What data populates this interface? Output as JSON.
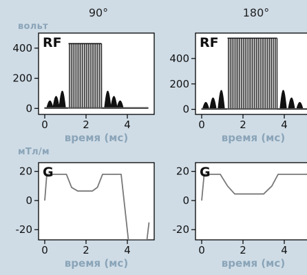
{
  "header": {
    "columns": [
      "90°",
      "180°"
    ],
    "rf_unit": "вольт",
    "g_unit": "мТл/м"
  },
  "chart_data": [
    {
      "id": "rf-90",
      "type": "line",
      "panel_label": "RF",
      "column": "90°",
      "xlabel": "время (мс)",
      "ylabel": "вольт",
      "xlim": [
        -0.3,
        5.3
      ],
      "ylim": [
        -40,
        500
      ],
      "xticks": [
        0,
        2,
        4
      ],
      "yticks": [
        0,
        200,
        400
      ],
      "series": [
        {
          "kind": "rf_pulse",
          "center": 1.95,
          "half_width": 0.8,
          "flat_top": 430,
          "lobes": [
            {
              "x": 0.25,
              "value": 50
            },
            {
              "x": 0.55,
              "value": 80
            },
            {
              "x": 0.85,
              "value": 115
            },
            {
              "x": 3.05,
              "value": 115
            },
            {
              "x": 3.35,
              "value": 80
            },
            {
              "x": 3.65,
              "value": 50
            }
          ],
          "baseline_end": 5.0,
          "baseline_value": 5
        }
      ]
    },
    {
      "id": "rf-180",
      "type": "line",
      "panel_label": "RF",
      "column": "180°",
      "xlabel": "время (мс)",
      "ylabel": "вольт",
      "xlim": [
        -0.3,
        5.3
      ],
      "ylim": [
        -40,
        600
      ],
      "xticks": [
        0,
        2,
        4
      ],
      "yticks": [
        0,
        200,
        400
      ],
      "series": [
        {
          "kind": "rf_pulse",
          "center": 2.45,
          "half_width": 1.2,
          "flat_top": 560,
          "lobes": [
            {
              "x": 0.2,
              "value": 55
            },
            {
              "x": 0.55,
              "value": 90
            },
            {
              "x": 0.95,
              "value": 150
            },
            {
              "x": 3.95,
              "value": 150
            },
            {
              "x": 4.35,
              "value": 90
            },
            {
              "x": 4.75,
              "value": 55
            }
          ],
          "baseline_end": 5.2,
          "baseline_value": 5
        }
      ]
    },
    {
      "id": "g-90",
      "type": "line",
      "panel_label": "G",
      "column": "90°",
      "xlabel": "время (мс)",
      "ylabel": "мТл/м",
      "xlim": [
        -0.3,
        5.3
      ],
      "ylim": [
        -27,
        26
      ],
      "xticks": [
        0,
        2,
        4
      ],
      "yticks": [
        -20,
        0,
        20
      ],
      "series": [
        {
          "kind": "gradient",
          "points": [
            [
              0.0,
              0
            ],
            [
              0.1,
              18
            ],
            [
              1.05,
              18
            ],
            [
              1.3,
              9
            ],
            [
              1.6,
              6.5
            ],
            [
              2.3,
              6.5
            ],
            [
              2.55,
              9
            ],
            [
              2.8,
              18
            ],
            [
              3.7,
              18
            ],
            [
              4.05,
              -27
            ],
            [
              4.95,
              -27
            ],
            [
              5.05,
              -15
            ]
          ]
        }
      ]
    },
    {
      "id": "g-180",
      "type": "line",
      "panel_label": "G",
      "column": "180°",
      "xlabel": "время (мс)",
      "ylabel": "мТл/м",
      "xlim": [
        -0.3,
        5.3
      ],
      "ylim": [
        -27,
        26
      ],
      "xticks": [
        0,
        2,
        4
      ],
      "yticks": [
        -20,
        0,
        20
      ],
      "series": [
        {
          "kind": "gradient",
          "points": [
            [
              0.0,
              0
            ],
            [
              0.12,
              18
            ],
            [
              0.9,
              18
            ],
            [
              1.25,
              10
            ],
            [
              1.6,
              4.5
            ],
            [
              3.0,
              4.5
            ],
            [
              3.4,
              10
            ],
            [
              3.7,
              18
            ],
            [
              5.2,
              18
            ]
          ]
        }
      ]
    }
  ]
}
